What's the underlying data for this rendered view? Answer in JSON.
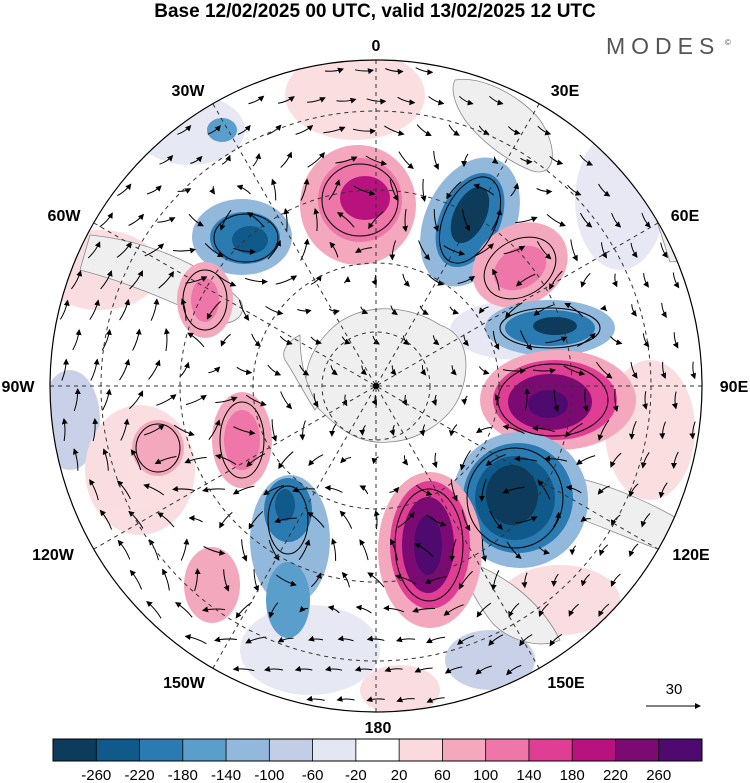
{
  "title": "Base 12/02/2025 00 UTC, valid 13/02/2025 12 UTC",
  "brand": {
    "name": "MODES",
    "mark": "©"
  },
  "meridian_labels": {
    "lon_0": "0",
    "lon_30e": "30E",
    "lon_60e": "60E",
    "lon_90e": "90E",
    "lon_120e": "120E",
    "lon_150e": "150E",
    "lon_180": "180",
    "lon_150w": "150W",
    "lon_120w": "120W",
    "lon_90w": "90W",
    "lon_60w": "60W",
    "lon_30w": "30W"
  },
  "reference_vector": {
    "label": "30"
  },
  "colorbar": {
    "ticks": [
      "-260",
      "-220",
      "-180",
      "-140",
      "-100",
      "-60",
      "-20",
      "20",
      "60",
      "100",
      "140",
      "180",
      "220",
      "260"
    ],
    "colors": [
      "#0c3b5c",
      "#0f5a8a",
      "#2b7bb3",
      "#5a9fcc",
      "#92b8dc",
      "#c3cde6",
      "#e4e6f2",
      "#ffffff",
      "#fadadd",
      "#f4a8bd",
      "#ee76a8",
      "#e03d95",
      "#b8127e",
      "#7b0a73",
      "#4f0a6f"
    ]
  },
  "map": {
    "projection": "south polar stereographic",
    "land_color": "#efefef",
    "anomalies": [
      {
        "name": "high-0",
        "value": 180
      },
      {
        "name": "low-30w",
        "value": -220
      },
      {
        "name": "low-20e",
        "value": -220
      },
      {
        "name": "high-40e",
        "value": 140
      },
      {
        "name": "low-70e",
        "value": -220
      },
      {
        "name": "high-90e",
        "value": 260
      },
      {
        "name": "low-120e",
        "value": -260
      },
      {
        "name": "high-150e",
        "value": 260
      },
      {
        "name": "low-150w",
        "value": -180
      },
      {
        "name": "high-120w",
        "value": 100
      },
      {
        "name": "high-105w",
        "value": 140
      },
      {
        "name": "high-60w",
        "value": 140
      },
      {
        "name": "high-95w",
        "value": 60
      }
    ]
  }
}
